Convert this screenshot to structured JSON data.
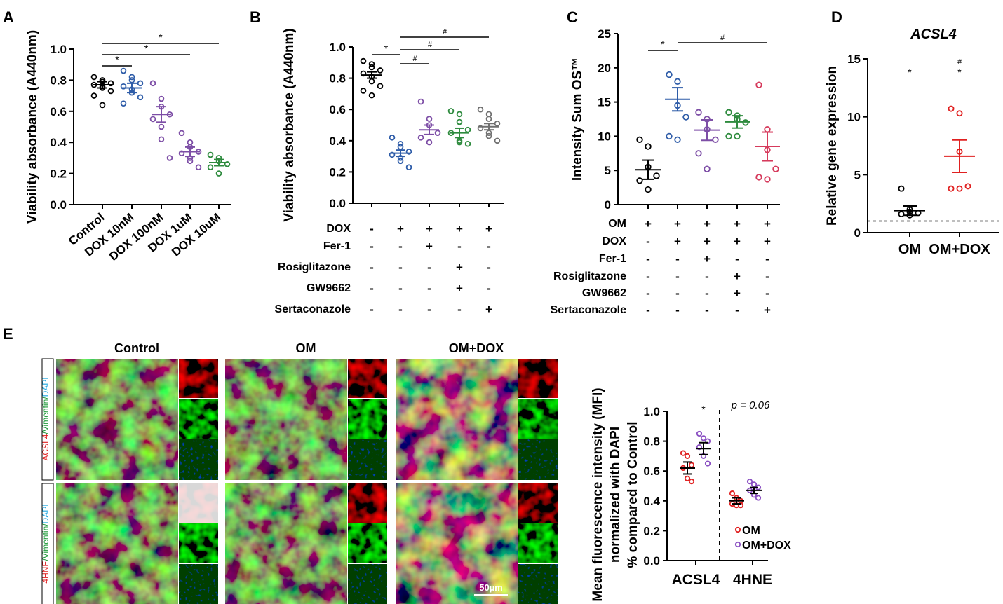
{
  "panels": {
    "A": "A",
    "B": "B",
    "C": "C",
    "D": "D",
    "E": "E"
  },
  "chart_data": [
    {
      "id": "A",
      "type": "scatter",
      "ylabel": "Viability absorbance (A440nm)",
      "ylim": [
        0,
        1.0
      ],
      "yticks": [
        "0.0",
        "0.2",
        "0.4",
        "0.6",
        "0.8",
        "1.0"
      ],
      "categories": [
        "Control",
        "DOX 10nM",
        "DOX 100nM",
        "DOX 1uM",
        "DOX 10uM"
      ],
      "colors": [
        "#000000",
        "#2e5ca8",
        "#7d4ea6",
        "#7d4ea6",
        "#2e8b3e"
      ],
      "means": [
        0.77,
        0.75,
        0.58,
        0.34,
        0.27
      ],
      "sems": [
        0.02,
        0.03,
        0.05,
        0.03,
        0.02
      ],
      "points": [
        [
          0.82,
          0.8,
          0.79,
          0.78,
          0.77,
          0.76,
          0.75,
          0.73,
          0.7,
          0.64
        ],
        [
          0.86,
          0.82,
          0.8,
          0.78,
          0.76,
          0.74,
          0.72,
          0.69,
          0.65
        ],
        [
          0.78,
          0.68,
          0.63,
          0.58,
          0.55,
          0.5,
          0.42,
          0.3
        ],
        [
          0.46,
          0.4,
          0.37,
          0.34,
          0.33,
          0.3,
          0.28,
          0.24
        ],
        [
          0.32,
          0.3,
          0.28,
          0.26,
          0.24,
          0.2
        ]
      ],
      "sig": [
        {
          "from": 0,
          "to": 1,
          "label": "*"
        },
        {
          "from": 0,
          "to": 3,
          "label": "*"
        },
        {
          "from": 0,
          "to": 4,
          "label": "*"
        }
      ]
    },
    {
      "id": "B",
      "type": "scatter",
      "ylabel": "Viability absorbance (A440nm)",
      "ylim": [
        0,
        1.0
      ],
      "yticks": [
        "0.0",
        "0.2",
        "0.4",
        "0.6",
        "0.8",
        "1.0"
      ],
      "rows": [
        "DOX",
        "Fer-1",
        "Rosiglitazone",
        "GW9662",
        "Sertaconazole"
      ],
      "signs": [
        [
          "-",
          "+",
          "+",
          "+",
          "+"
        ],
        [
          "-",
          "-",
          "+",
          "-",
          "-"
        ],
        [
          "-",
          "-",
          "-",
          "+",
          "-"
        ],
        [
          "-",
          "-",
          "-",
          "+",
          "-"
        ],
        [
          "-",
          "-",
          "-",
          "-",
          "+"
        ]
      ],
      "colors": [
        "#000000",
        "#2e5ca8",
        "#7d4ea6",
        "#2e8b3e",
        "#707070"
      ],
      "means": [
        0.82,
        0.32,
        0.47,
        0.45,
        0.49
      ],
      "sems": [
        0.02,
        0.02,
        0.03,
        0.03,
        0.02
      ],
      "points": [
        [
          0.91,
          0.89,
          0.87,
          0.85,
          0.83,
          0.81,
          0.78,
          0.75,
          0.72,
          0.69
        ],
        [
          0.42,
          0.38,
          0.36,
          0.33,
          0.31,
          0.29,
          0.27,
          0.23
        ],
        [
          0.65,
          0.54,
          0.5,
          0.45,
          0.42,
          0.39
        ],
        [
          0.59,
          0.57,
          0.52,
          0.47,
          0.45,
          0.4,
          0.39,
          0.38
        ],
        [
          0.6,
          0.57,
          0.54,
          0.51,
          0.48,
          0.45,
          0.43,
          0.4
        ]
      ],
      "sig": [
        {
          "from": 0,
          "to": 1,
          "label": "*"
        },
        {
          "from": 1,
          "to": 2,
          "label": "#"
        },
        {
          "from": 1,
          "to": 3,
          "label": "#"
        },
        {
          "from": 1,
          "to": 4,
          "label": "#"
        }
      ]
    },
    {
      "id": "C",
      "type": "scatter",
      "ylabel": "Intensity Sum OS™",
      "ylim": [
        0,
        25
      ],
      "yticks": [
        "0",
        "5",
        "10",
        "15",
        "20",
        "25"
      ],
      "rows": [
        "OM",
        "DOX",
        "Fer-1",
        "Rosiglitazone",
        "GW9662",
        "Sertaconazole"
      ],
      "signs": [
        [
          "+",
          "+",
          "+",
          "+",
          "+"
        ],
        [
          "-",
          "+",
          "+",
          "+",
          "+"
        ],
        [
          "-",
          "-",
          "+",
          "-",
          "-"
        ],
        [
          "-",
          "-",
          "-",
          "+",
          "-"
        ],
        [
          "-",
          "-",
          "-",
          "+",
          "-"
        ],
        [
          "-",
          "-",
          "-",
          "-",
          "+"
        ]
      ],
      "colors": [
        "#000000",
        "#2e5ca8",
        "#7d4ea6",
        "#2e8b3e",
        "#d63a5c"
      ],
      "means": [
        5.1,
        15.4,
        10.9,
        12.1,
        8.5
      ],
      "sems": [
        1.4,
        1.7,
        1.5,
        0.9,
        2.1
      ],
      "points": [
        [
          9.5,
          8.5,
          5.5,
          4.2,
          3.5,
          2.2
        ],
        [
          19.0,
          18.0,
          14.5,
          12.8,
          10.0,
          9.5
        ],
        [
          13.5,
          12.5,
          11.0,
          9.5,
          7.5,
          5.2
        ],
        [
          13.5,
          13.0,
          12.5,
          12.0,
          10.0,
          10.0
        ],
        [
          17.5,
          11.0,
          8.0,
          5.2,
          4.0,
          3.7
        ]
      ],
      "sig": [
        {
          "from": 0,
          "to": 1,
          "label": "*"
        },
        {
          "from": 1,
          "to": 4,
          "label": "#"
        }
      ]
    },
    {
      "id": "D",
      "type": "scatter",
      "title": "ACSL4",
      "ylabel": "Relative gene expression",
      "ylim": [
        0,
        15
      ],
      "yticks": [
        "0",
        "5",
        "10",
        "15"
      ],
      "categories": [
        "OM",
        "OM+DOX"
      ],
      "colors": [
        "#000000",
        "#e02020"
      ],
      "means": [
        1.9,
        6.6
      ],
      "sems": [
        0.4,
        1.4
      ],
      "points": [
        [
          3.8,
          2.0,
          1.8,
          1.7,
          1.6,
          1.5
        ],
        [
          10.7,
          10.3,
          7.0,
          4.0,
          3.8,
          3.8
        ]
      ],
      "reference_line": 1,
      "annotations": [
        [
          "*"
        ],
        [
          "#",
          "*"
        ]
      ]
    },
    {
      "id": "E_chart",
      "type": "scatter",
      "ylabel_lines": [
        "Mean fluorescence intensity (MFI)",
        "normalized with DAPI",
        "% compared to Control"
      ],
      "ylim": [
        0,
        1.0
      ],
      "yticks": [
        "0.0",
        "0.2",
        "0.4",
        "0.6",
        "0.8",
        "1.0"
      ],
      "categories": [
        "ACSL4",
        "4HNE"
      ],
      "series": [
        {
          "name": "OM",
          "color": "#e02020",
          "means": [
            0.62,
            0.4
          ],
          "sems": [
            0.04,
            0.02
          ],
          "points": [
            [
              0.72,
              0.7,
              0.64,
              0.62,
              0.55,
              0.53
            ],
            [
              0.45,
              0.42,
              0.4,
              0.38,
              0.37,
              0.37
            ]
          ]
        },
        {
          "name": "OM+DOX",
          "color": "#8a4fc2",
          "means": [
            0.75,
            0.47
          ],
          "sems": [
            0.04,
            0.02
          ],
          "points": [
            [
              0.85,
              0.82,
              0.8,
              0.76,
              0.7,
              0.65
            ],
            [
              0.53,
              0.51,
              0.49,
              0.47,
              0.44,
              0.42
            ]
          ]
        }
      ],
      "annotations": {
        "ACSL4": "*",
        "4HNE": "p = 0.06"
      }
    }
  ],
  "micrographs": {
    "columns": [
      "Control",
      "OM",
      "OM+DOX"
    ],
    "row_labels": [
      {
        "marker": "ACSL4",
        "rest": "/Vimentin/",
        "dapi": "DAPI"
      },
      {
        "marker": "4HNE",
        "rest": "/Vimentin/",
        "dapi": "DAPI"
      }
    ],
    "scale_bar": "50µm"
  }
}
